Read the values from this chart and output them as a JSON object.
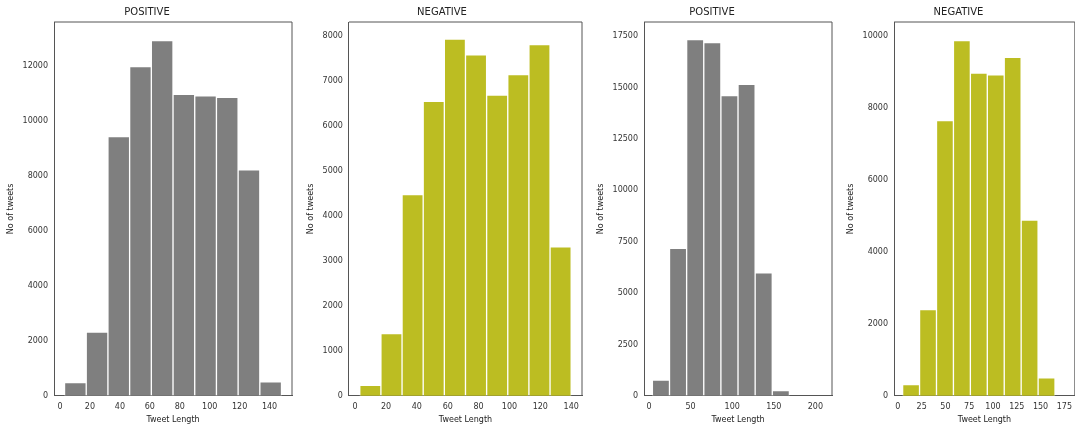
{
  "chart_data": [
    {
      "type": "histogram",
      "title": "POSITIVE",
      "xlabel": "Tweet Length",
      "ylabel": "No of tweets",
      "color": "#7f7f7f",
      "bins": [
        3,
        17.5,
        32,
        46.5,
        61,
        75.5,
        90,
        104.5,
        119,
        133.5,
        148
      ],
      "values": [
        480,
        2320,
        9430,
        11980,
        12920,
        10970,
        10910,
        10860,
        8220,
        510
      ],
      "xlim": [
        -4,
        155
      ],
      "ylim": [
        0,
        13600
      ],
      "xticks": [
        0,
        20,
        40,
        60,
        80,
        100,
        120,
        140
      ],
      "yticks": [
        0,
        2000,
        4000,
        6000,
        8000,
        10000,
        12000
      ],
      "grid": false
    },
    {
      "type": "histogram",
      "title": "NEGATIVE",
      "xlabel": "Tweet Length",
      "ylabel": "No of tweets",
      "color": "#bcbd22",
      "bins": [
        3,
        16.7,
        30.4,
        44.1,
        57.8,
        71.5,
        85.2,
        98.9,
        112.6,
        126.3,
        140
      ],
      "values": [
        230,
        1380,
        4470,
        6540,
        7920,
        7570,
        6680,
        7130,
        7800,
        3310
      ],
      "xlim": [
        -4,
        147
      ],
      "ylim": [
        0,
        8300
      ],
      "xticks": [
        0,
        20,
        40,
        60,
        80,
        100,
        120,
        140
      ],
      "yticks": [
        0,
        1000,
        2000,
        3000,
        4000,
        5000,
        6000,
        7000,
        8000
      ],
      "grid": false
    },
    {
      "type": "histogram",
      "title": "POSITIVE",
      "xlabel": "Tweet Length",
      "ylabel": "No of tweets",
      "color": "#7f7f7f",
      "bins": [
        4,
        24.6,
        45.2,
        65.8,
        86.4,
        107,
        127.6,
        148.2,
        168.8,
        189.4,
        210
      ],
      "values": [
        760,
        7180,
        17350,
        17200,
        14620,
        15170,
        5990,
        250,
        0,
        0
      ],
      "xlim": [
        -6,
        220
      ],
      "ylim": [
        0,
        18200
      ],
      "xticks": [
        0,
        50,
        100,
        150,
        200
      ],
      "yticks": [
        0,
        2500,
        5000,
        7500,
        10000,
        12500,
        15000,
        17500
      ],
      "grid": false
    },
    {
      "type": "histogram",
      "title": "NEGATIVE",
      "xlabel": "Tweet Length",
      "ylabel": "No of tweets",
      "color": "#bcbd22",
      "bins": [
        5,
        22.8,
        40.6,
        58.4,
        76.2,
        94,
        111.8,
        129.6,
        147.4,
        165.2,
        183
      ],
      "values": [
        310,
        2400,
        7660,
        9880,
        8980,
        8930,
        9420,
        4890,
        500,
        null
      ],
      "xlim": [
        -4,
        186
      ],
      "ylim": [
        0,
        10400
      ],
      "xticks": [
        0,
        25,
        50,
        75,
        100,
        125,
        150,
        175
      ],
      "yticks": [
        0,
        2000,
        4000,
        6000,
        8000,
        10000
      ],
      "grid": false
    }
  ]
}
